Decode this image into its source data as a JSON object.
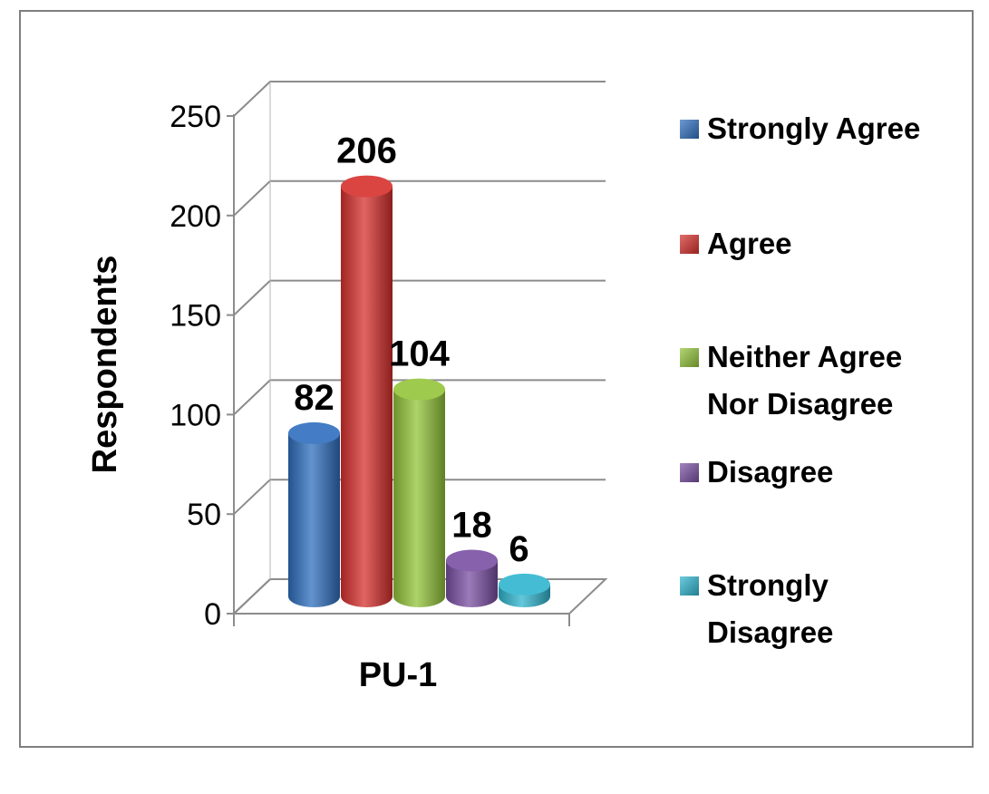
{
  "chart_data": {
    "type": "bar",
    "categories": [
      "PU-1"
    ],
    "xlabel": "PU-1",
    "ylabel": "Respondents",
    "ylim": [
      0,
      250
    ],
    "yticks": [
      0,
      50,
      100,
      150,
      200,
      250
    ],
    "grid": true,
    "legend_position": "right",
    "series": [
      {
        "name": "Strongly Agree",
        "values": [
          82
        ],
        "color": "#2f6fbe"
      },
      {
        "name": "Agree",
        "values": [
          206
        ],
        "color": "#d6302d"
      },
      {
        "name": "Neither Agree Nor Disagree",
        "legend_lines": [
          "Neither Agree",
          "Nor Disagree"
        ],
        "values": [
          104
        ],
        "color": "#93c43a"
      },
      {
        "name": "Disagree",
        "values": [
          18
        ],
        "color": "#7a4fa3"
      },
      {
        "name": "Strongly Disagree",
        "legend_lines": [
          "Strongly",
          "Disagree"
        ],
        "values": [
          6
        ],
        "color": "#2fb6cf"
      }
    ]
  }
}
